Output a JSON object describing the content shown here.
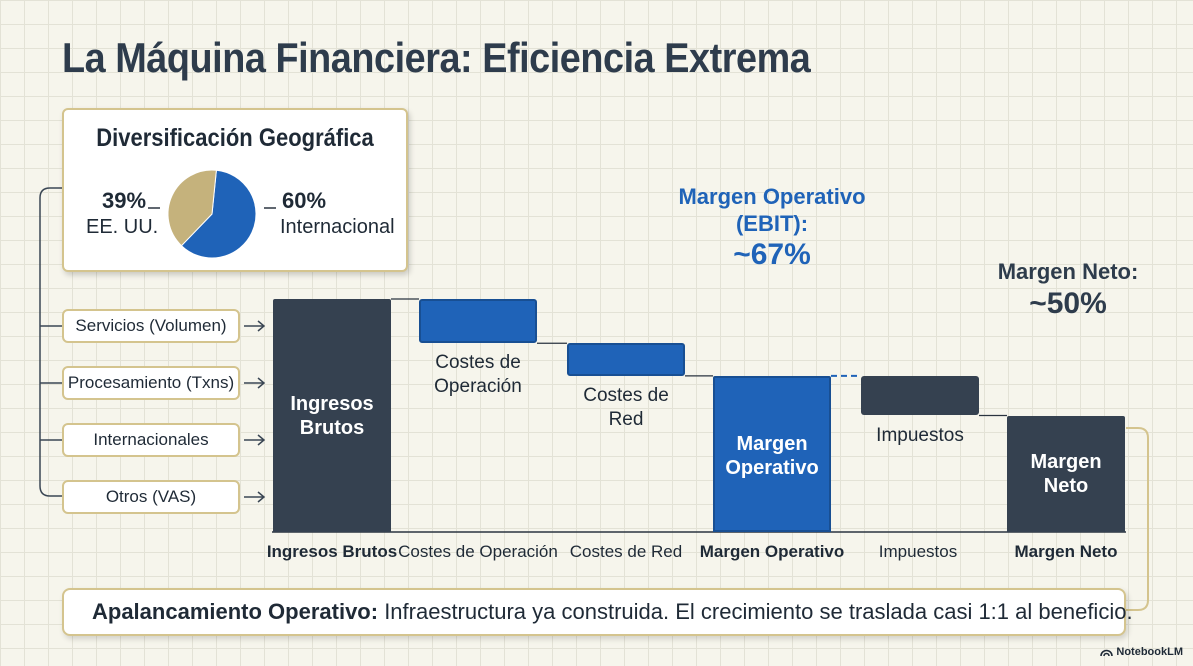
{
  "title": "La Máquina Financiera: Eficiencia Extrema",
  "geo": {
    "title": "Diversificación Geográfica",
    "segments": [
      {
        "pct": "39%",
        "label": "EE. UU.",
        "value": 39,
        "color": "#c5b27c"
      },
      {
        "pct": "60%",
        "label": "Internacional",
        "value": 60,
        "color": "#1f63b8"
      }
    ]
  },
  "revenue_streams": [
    "Servicios (Volumen)",
    "Procesamiento (Txns)",
    "Internacionales",
    "Otros (VAS)"
  ],
  "waterfall": {
    "bars": [
      {
        "name": "Ingresos Brutos",
        "inner": "Ingresos\nBrutos",
        "value": 100,
        "type": "total"
      },
      {
        "name": "Costes de Operación",
        "inner": "Costes de\nOperación",
        "value": -19,
        "type": "decrease"
      },
      {
        "name": "Costes de Red",
        "inner": "Costes de\nRed",
        "value": -14,
        "type": "decrease"
      },
      {
        "name": "Margen Operativo",
        "inner": "Margen\nOperativo",
        "value": 67,
        "type": "total"
      },
      {
        "name": "Impuestos",
        "inner": "Impuestos",
        "value": -17,
        "type": "decrease"
      },
      {
        "name": "Margen Neto",
        "inner": "Margen\nNeto",
        "value": 50,
        "type": "total"
      }
    ]
  },
  "callouts": {
    "operating": {
      "label1": "Margen Operativo",
      "label2": "(EBIT):",
      "value": "~67%"
    },
    "net": {
      "label": "Margen Neto:",
      "value": "~50%"
    }
  },
  "bottom": {
    "bold": "Apalancamiento Operativo:",
    "text": " Infraestructura ya construida. El crecimiento se traslada casi 1:1 al beneficio."
  },
  "brand": "NotebookLM",
  "colors": {
    "dark": "#354150",
    "blue": "#1f63b8",
    "gold": "#c5b27c",
    "border": "#d4c48e"
  }
}
